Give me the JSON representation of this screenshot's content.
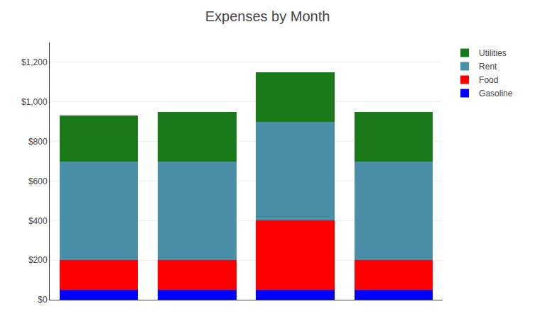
{
  "chart_data": {
    "type": "bar",
    "title": "Expenses by Month",
    "stacked": true,
    "categories": [
      null,
      null,
      null,
      null
    ],
    "series": [
      {
        "name": "Gasoline",
        "color": "#0000FF",
        "values": [
          50,
          50,
          50,
          50
        ]
      },
      {
        "name": "Food",
        "color": "#FF0000",
        "values": [
          150,
          150,
          350,
          150
        ]
      },
      {
        "name": "Rent",
        "color": "#4A8FA8",
        "values": [
          500,
          500,
          500,
          500
        ]
      },
      {
        "name": "Utilities",
        "color": "#1A7A1A",
        "values": [
          230,
          250,
          250,
          250
        ]
      }
    ],
    "ylim": [
      0,
      1300
    ],
    "yticks": [
      {
        "value": 0,
        "label": "$0"
      },
      {
        "value": 200,
        "label": "$200"
      },
      {
        "value": 400,
        "label": "$400"
      },
      {
        "value": 600,
        "label": "$600"
      },
      {
        "value": 800,
        "label": "$800"
      },
      {
        "value": 1000,
        "label": "$1,000"
      },
      {
        "value": 1200,
        "label": "$1,200"
      }
    ],
    "grid": true,
    "legend": "upper right",
    "tick_labels": "y"
  }
}
